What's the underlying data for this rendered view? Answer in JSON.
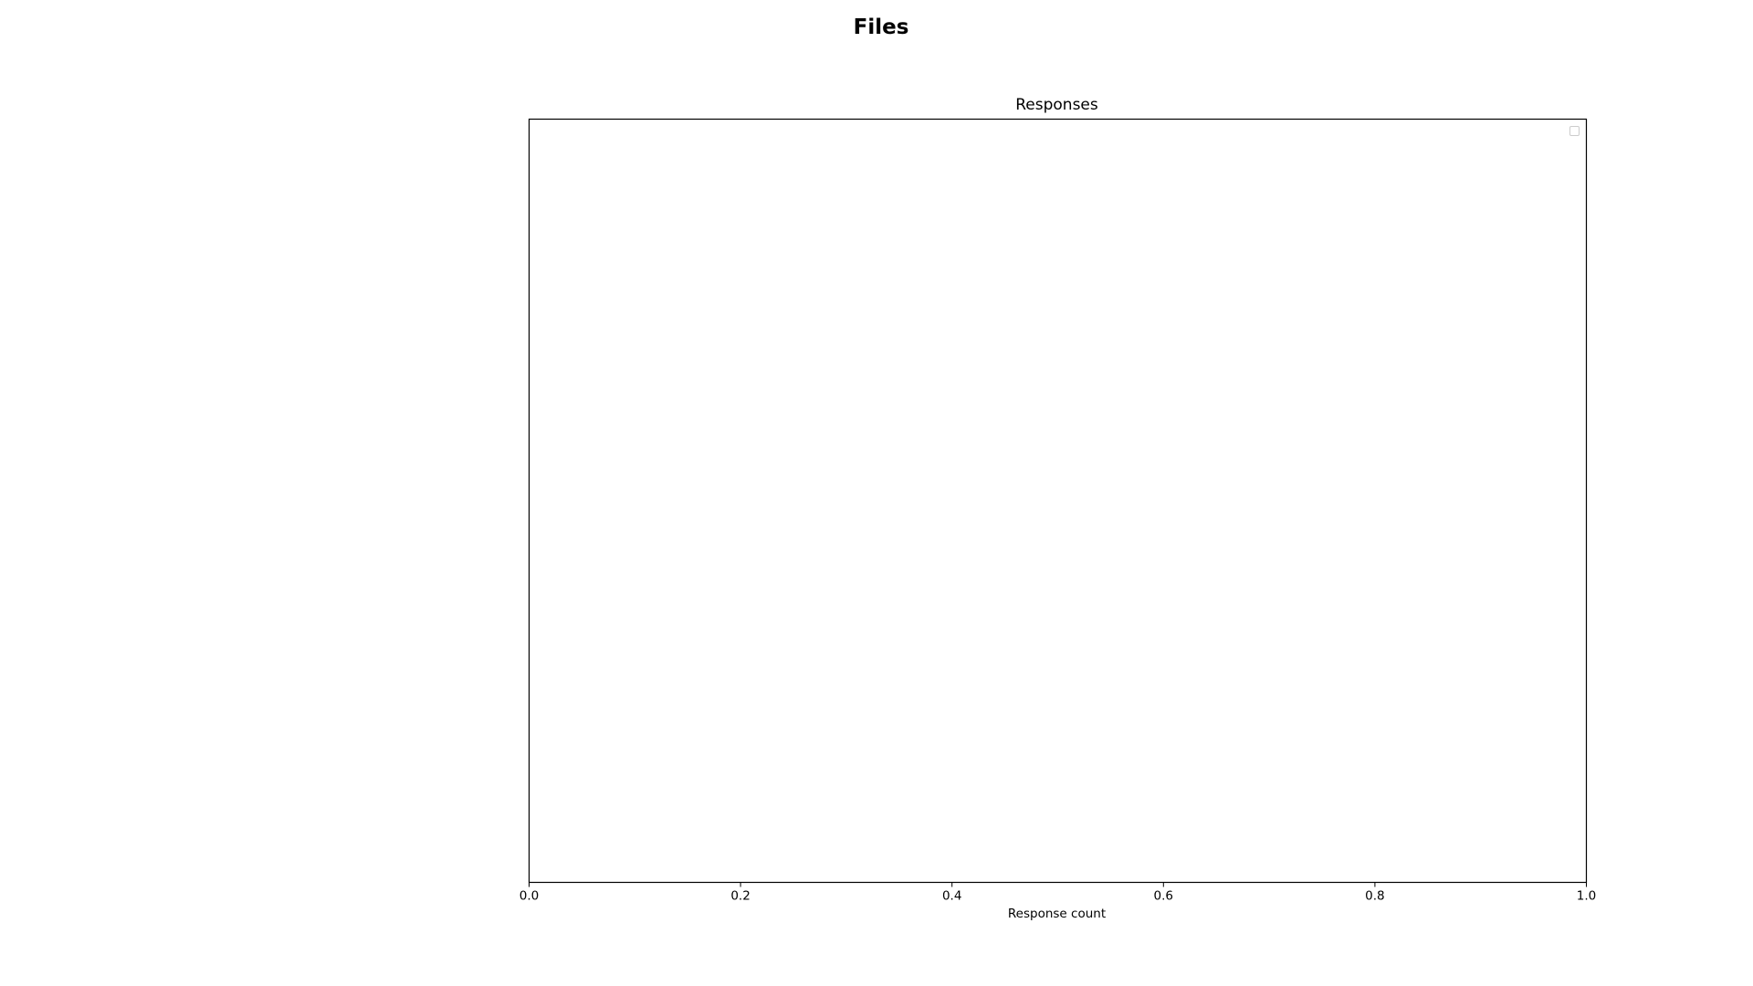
{
  "chart_data": {
    "type": "bar",
    "suptitle": "Files",
    "title": "Responses",
    "xlabel": "Response count",
    "ylabel": "",
    "xlim": [
      0.0,
      1.0
    ],
    "x_ticks": [
      "0.0",
      "0.2",
      "0.4",
      "0.6",
      "0.8",
      "1.0"
    ],
    "categories": [],
    "values": [],
    "legend": {
      "placement": "top-right",
      "entries": []
    },
    "grid": false,
    "colors": {
      "axes_edge": "#000000",
      "background": "#ffffff",
      "legend_edge": "#cccccc"
    }
  }
}
